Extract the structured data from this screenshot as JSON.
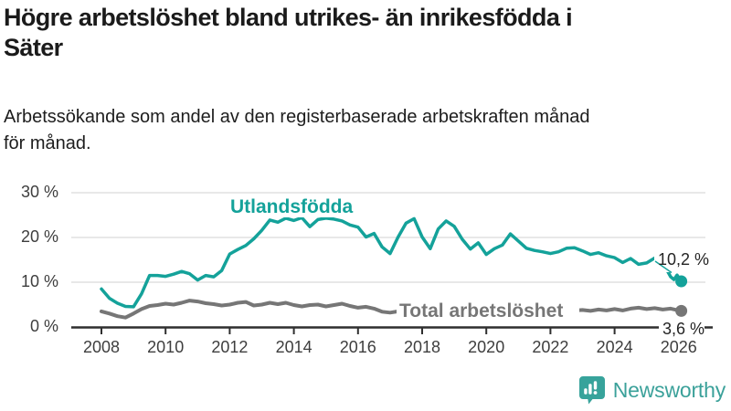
{
  "header": {
    "title_line1": "Högre arbetslöshet bland utrikes- än inrikesfödda i",
    "title_line2": "Säter",
    "subtitle_line1": "Arbetssökande som andel av den registerbaserade arbetskraften månad",
    "subtitle_line2": "för månad."
  },
  "chart_data": {
    "type": "line",
    "title": "Högre arbetslöshet bland utrikes- än inrikesfödda i Säter",
    "subtitle": "Arbetssökande som andel av den registerbaserade arbetskraften månad för månad.",
    "x_range": [
      2008,
      2026.2
    ],
    "y_range": [
      0,
      30
    ],
    "y_unit": "%",
    "grid": "horizontal-only",
    "legend_position": "inline-labels",
    "colors": {
      "accent_teal": "#14a29a",
      "neutral_gray": "#767676",
      "axis": "#2f2f2f",
      "gridline": "#d9d9d9",
      "tick_text": "#3e3e3e"
    },
    "x_ticks": [
      {
        "year": 2008,
        "label": "2008"
      },
      {
        "year": 2010,
        "label": "2010"
      },
      {
        "year": 2012,
        "label": "2012"
      },
      {
        "year": 2014,
        "label": "2014"
      },
      {
        "year": 2016,
        "label": "2016"
      },
      {
        "year": 2018,
        "label": "2018"
      },
      {
        "year": 2020,
        "label": "2020"
      },
      {
        "year": 2022,
        "label": "2022"
      },
      {
        "year": 2024,
        "label": "2024"
      },
      {
        "year": 2026,
        "label": "2026"
      }
    ],
    "y_ticks": [
      {
        "value": 0,
        "label": "0 %"
      },
      {
        "value": 10,
        "label": "10 %"
      },
      {
        "value": 20,
        "label": "20 %"
      },
      {
        "value": 30,
        "label": "30 %"
      }
    ],
    "series": [
      {
        "name": "Utlandsfödda",
        "color": "#14a29a",
        "end_label": "10,2 %",
        "end_value": 10.2,
        "points": [
          [
            2008.0,
            8.5
          ],
          [
            2008.25,
            6.4
          ],
          [
            2008.5,
            5.3
          ],
          [
            2008.75,
            4.6
          ],
          [
            2009.0,
            4.5
          ],
          [
            2009.25,
            7.4
          ],
          [
            2009.5,
            11.5
          ],
          [
            2009.75,
            11.5
          ],
          [
            2010.0,
            11.3
          ],
          [
            2010.25,
            11.8
          ],
          [
            2010.5,
            12.4
          ],
          [
            2010.75,
            11.9
          ],
          [
            2011.0,
            10.5
          ],
          [
            2011.25,
            11.5
          ],
          [
            2011.5,
            11.2
          ],
          [
            2011.75,
            12.6
          ],
          [
            2012.0,
            16.3
          ],
          [
            2012.25,
            17.3
          ],
          [
            2012.5,
            18.2
          ],
          [
            2012.75,
            19.7
          ],
          [
            2013.0,
            21.6
          ],
          [
            2013.25,
            23.9
          ],
          [
            2013.5,
            23.4
          ],
          [
            2013.75,
            24.3
          ],
          [
            2014.0,
            23.8
          ],
          [
            2014.25,
            24.4
          ],
          [
            2014.5,
            22.4
          ],
          [
            2014.75,
            24.0
          ],
          [
            2015.0,
            24.3
          ],
          [
            2015.25,
            24.1
          ],
          [
            2015.5,
            23.7
          ],
          [
            2015.75,
            22.8
          ],
          [
            2016.0,
            22.3
          ],
          [
            2016.25,
            20.1
          ],
          [
            2016.5,
            20.9
          ],
          [
            2016.75,
            17.9
          ],
          [
            2017.0,
            16.4
          ],
          [
            2017.25,
            20.1
          ],
          [
            2017.5,
            23.2
          ],
          [
            2017.75,
            24.2
          ],
          [
            2018.0,
            20.1
          ],
          [
            2018.25,
            17.5
          ],
          [
            2018.5,
            21.9
          ],
          [
            2018.75,
            23.7
          ],
          [
            2019.0,
            22.5
          ],
          [
            2019.25,
            19.6
          ],
          [
            2019.5,
            17.4
          ],
          [
            2019.75,
            18.8
          ],
          [
            2020.0,
            16.2
          ],
          [
            2020.25,
            17.5
          ],
          [
            2020.5,
            18.3
          ],
          [
            2020.75,
            20.8
          ],
          [
            2021.0,
            19.2
          ],
          [
            2021.25,
            17.6
          ],
          [
            2021.5,
            17.1
          ],
          [
            2021.75,
            16.8
          ],
          [
            2022.0,
            16.4
          ],
          [
            2022.25,
            16.8
          ],
          [
            2022.5,
            17.6
          ],
          [
            2022.75,
            17.7
          ],
          [
            2023.0,
            17.0
          ],
          [
            2023.25,
            16.2
          ],
          [
            2023.5,
            16.6
          ],
          [
            2023.75,
            15.9
          ],
          [
            2024.0,
            15.5
          ],
          [
            2024.25,
            14.4
          ],
          [
            2024.5,
            15.3
          ],
          [
            2024.75,
            14.0
          ],
          [
            2025.0,
            14.3
          ],
          [
            2025.25,
            15.4
          ],
          [
            2025.4,
            15.6
          ],
          [
            2025.55,
            13.8
          ],
          [
            2025.75,
            11.2
          ],
          [
            2025.85,
            10.6
          ],
          [
            2025.95,
            11.6
          ],
          [
            2026.08,
            10.2
          ]
        ]
      },
      {
        "name": "Total arbetslöshet",
        "color": "#767676",
        "end_label": "3,6 %",
        "end_value": 3.6,
        "points": [
          [
            2008.0,
            3.5
          ],
          [
            2008.25,
            3.0
          ],
          [
            2008.5,
            2.4
          ],
          [
            2008.75,
            2.1
          ],
          [
            2009.0,
            3.0
          ],
          [
            2009.25,
            4.0
          ],
          [
            2009.5,
            4.7
          ],
          [
            2009.75,
            4.9
          ],
          [
            2010.0,
            5.2
          ],
          [
            2010.25,
            5.0
          ],
          [
            2010.5,
            5.4
          ],
          [
            2010.75,
            5.9
          ],
          [
            2011.0,
            5.7
          ],
          [
            2011.25,
            5.3
          ],
          [
            2011.5,
            5.1
          ],
          [
            2011.75,
            4.8
          ],
          [
            2012.0,
            5.0
          ],
          [
            2012.25,
            5.4
          ],
          [
            2012.5,
            5.6
          ],
          [
            2012.75,
            4.8
          ],
          [
            2013.0,
            5.0
          ],
          [
            2013.25,
            5.4
          ],
          [
            2013.5,
            5.1
          ],
          [
            2013.75,
            5.4
          ],
          [
            2014.0,
            4.9
          ],
          [
            2014.25,
            4.6
          ],
          [
            2014.5,
            4.9
          ],
          [
            2014.75,
            5.0
          ],
          [
            2015.0,
            4.6
          ],
          [
            2015.25,
            4.9
          ],
          [
            2015.5,
            5.2
          ],
          [
            2015.75,
            4.7
          ],
          [
            2016.0,
            4.3
          ],
          [
            2016.25,
            4.5
          ],
          [
            2016.5,
            4.1
          ],
          [
            2016.75,
            3.4
          ],
          [
            2017.0,
            3.2
          ],
          [
            2017.25,
            3.5
          ],
          [
            2017.5,
            3.4
          ],
          [
            2018.0,
            3.6
          ],
          [
            2018.5,
            3.5
          ],
          [
            2019.0,
            3.5
          ],
          [
            2019.5,
            3.6
          ],
          [
            2020.0,
            4.3
          ],
          [
            2020.5,
            4.1
          ],
          [
            2021.0,
            3.9
          ],
          [
            2021.5,
            3.6
          ],
          [
            2022.0,
            3.4
          ],
          [
            2022.5,
            3.5
          ],
          [
            2022.75,
            3.7
          ],
          [
            2023.0,
            3.8
          ],
          [
            2023.25,
            3.6
          ],
          [
            2023.5,
            3.9
          ],
          [
            2023.75,
            3.7
          ],
          [
            2024.0,
            4.0
          ],
          [
            2024.25,
            3.7
          ],
          [
            2024.5,
            4.1
          ],
          [
            2024.75,
            4.3
          ],
          [
            2025.0,
            4.0
          ],
          [
            2025.25,
            4.2
          ],
          [
            2025.5,
            3.9
          ],
          [
            2025.75,
            4.1
          ],
          [
            2026.0,
            3.7
          ],
          [
            2026.08,
            3.6
          ]
        ]
      }
    ]
  },
  "logo": {
    "text": "Newsworthy",
    "color": "#3ba19a",
    "icon": "newsworthy-speech-bubble-barchart-icon"
  }
}
